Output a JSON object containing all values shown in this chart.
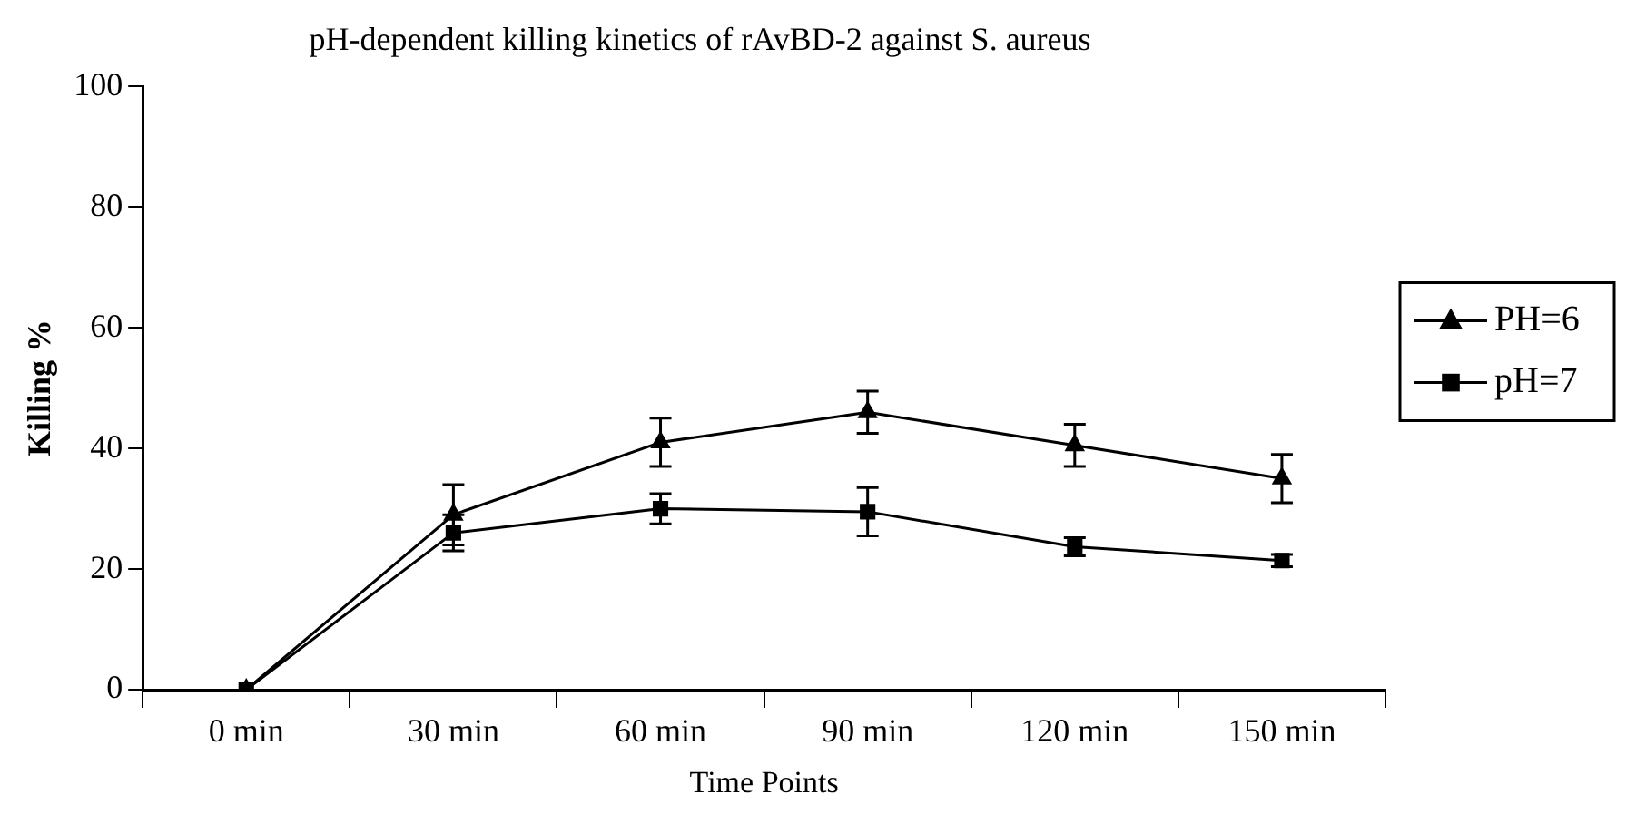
{
  "chart_data": {
    "type": "line",
    "title": "pH-dependent killing kinetics of rAvBD-2 against S. aureus",
    "xlabel": "Time Points",
    "ylabel": "Killing %",
    "categories": [
      "0 min",
      "30 min",
      "60 min",
      "90 min",
      "120 min",
      "150 min"
    ],
    "series": [
      {
        "name": "PH=6",
        "color": "#000000",
        "marker": "triangle",
        "values": [
          0,
          29,
          41,
          46,
          40.5,
          35
        ],
        "errors": [
          null,
          5,
          4,
          3.5,
          3.5,
          4
        ]
      },
      {
        "name": "pH=7",
        "color": "#000000",
        "marker": "square",
        "values": [
          0,
          26,
          30,
          29.5,
          23.7,
          21.4
        ],
        "errors": [
          null,
          3,
          2.5,
          4,
          1.5,
          1
        ]
      }
    ],
    "ylim": [
      0,
      100
    ],
    "yticks": [
      0,
      20,
      40,
      60,
      80,
      100
    ],
    "grid": false,
    "legend": "right",
    "line_style": "solid"
  }
}
